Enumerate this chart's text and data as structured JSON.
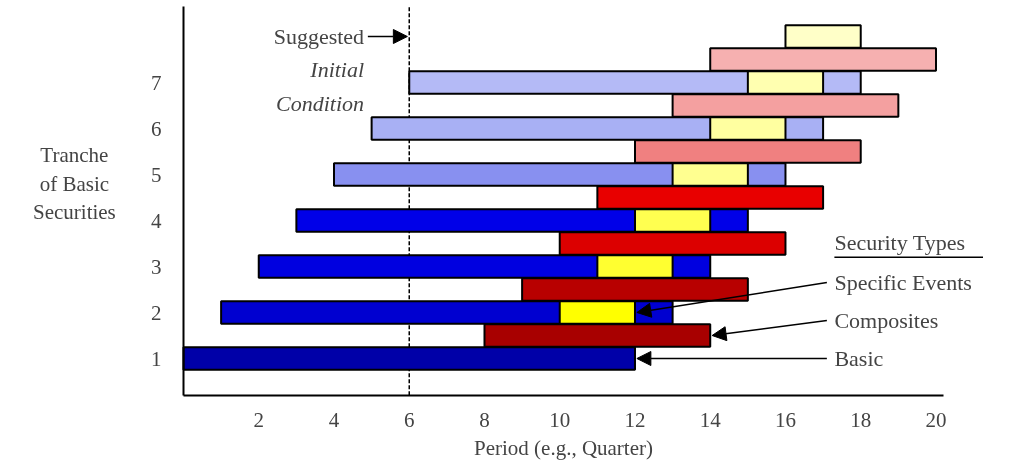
{
  "chart_data": {
    "type": "bar",
    "orientation": "horizontal",
    "xlabel": "Period (e.g., Quarter)",
    "ylabel": "Tranche\nof Basic\nSecurities",
    "legend_title": "Security Types",
    "categories": [
      null,
      null,
      "7",
      null,
      "6",
      null,
      "5",
      null,
      "4",
      null,
      "3",
      null,
      "2",
      null,
      "1"
    ],
    "series": [
      {
        "name": "Specific Events",
        "values": [
          2,
          null,
          2,
          null,
          2,
          null,
          2,
          null,
          2,
          null,
          2,
          null,
          2,
          null,
          null
        ],
        "base": [
          16,
          null,
          15,
          null,
          14,
          null,
          13,
          null,
          12,
          null,
          11,
          null,
          10,
          null,
          null
        ],
        "colors": [
          "#ffffc8",
          null,
          "#ffffb0",
          null,
          "#ffffa0",
          null,
          "#ffff90",
          null,
          "#ffff50",
          null,
          "#ffff30",
          null,
          "#ffff00",
          null,
          null
        ]
      },
      {
        "name": "Composites",
        "values": [
          null,
          6,
          null,
          6,
          null,
          6,
          null,
          6,
          null,
          6,
          null,
          6,
          null,
          6,
          null
        ],
        "base": [
          null,
          14,
          null,
          13,
          null,
          12,
          null,
          11,
          null,
          10,
          null,
          9,
          null,
          8,
          null
        ],
        "colors": [
          null,
          "#f6b0b0",
          null,
          "#f4a0a0",
          null,
          "#f08080",
          null,
          "#e80000",
          null,
          "#dc0000",
          null,
          "#b80000",
          null,
          "#a80000",
          null
        ]
      },
      {
        "name": "Basic",
        "values": [
          null,
          null,
          12,
          null,
          12,
          null,
          12,
          null,
          12,
          null,
          12,
          null,
          12,
          null,
          12
        ],
        "base": [
          null,
          null,
          6,
          null,
          5,
          null,
          4,
          null,
          3,
          null,
          2,
          null,
          1,
          null,
          0
        ],
        "colors": [
          null,
          null,
          "#b4baf6",
          null,
          "#a8b0f4",
          null,
          "#8890f0",
          null,
          "#0000e8",
          null,
          "#0000e0",
          null,
          "#0000d0",
          null,
          "#0000a8"
        ]
      }
    ],
    "xlim": [
      0,
      20.2
    ],
    "xticks": [
      2,
      4,
      6,
      8,
      10,
      12,
      14,
      16,
      18,
      20
    ],
    "ref_lines": [
      {
        "axis": "x",
        "value": 6,
        "label": "Suggested\nInitial\nCondition",
        "line_style": "dashed"
      }
    ],
    "grid": false,
    "legend": "right"
  }
}
